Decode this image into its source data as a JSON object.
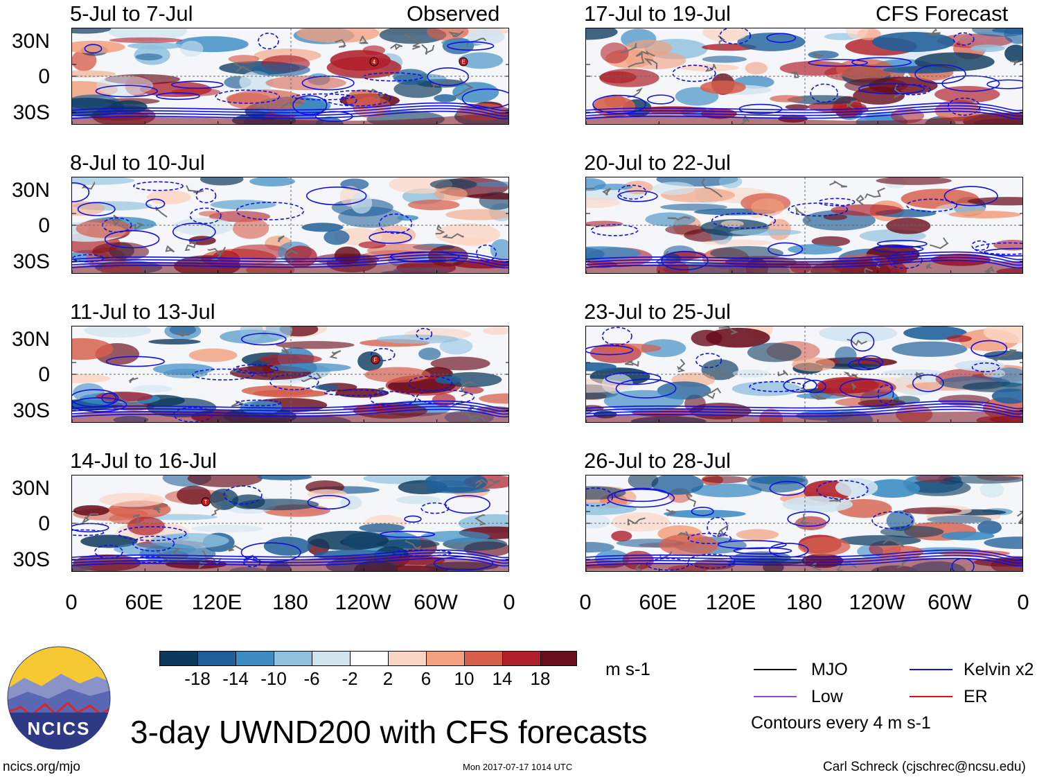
{
  "headers": {
    "left": "Observed",
    "right": "CFS Forecast"
  },
  "panels_observed": [
    {
      "title": "5-Jul to 7-Jul"
    },
    {
      "title": "8-Jul to 10-Jul"
    },
    {
      "title": "11-Jul to 13-Jul"
    },
    {
      "title": "14-Jul to 16-Jul"
    }
  ],
  "panels_forecast": [
    {
      "title": "17-Jul to 19-Jul"
    },
    {
      "title": "20-Jul to 22-Jul"
    },
    {
      "title": "23-Jul to 25-Jul"
    },
    {
      "title": "26-Jul to 28-Jul"
    }
  ],
  "lat_labels": [
    "30N",
    "0",
    "30S"
  ],
  "lon_labels": [
    "0",
    "60E",
    "120E",
    "180",
    "120W",
    "60W",
    "0"
  ],
  "colorbar": {
    "unit": "m s-1",
    "labels": [
      "-18",
      "-14",
      "-10",
      "-6",
      "-2",
      "2",
      "6",
      "10",
      "14",
      "18"
    ],
    "colors": [
      "#0c3a5e",
      "#1e5f99",
      "#3d8cc4",
      "#8fc1de",
      "#d0e4f0",
      "#ffffff",
      "#fbd5c4",
      "#f2a07f",
      "#d65f4c",
      "#b01f2a",
      "#6a0d1b"
    ]
  },
  "legend": {
    "mjo": "MJO",
    "kelvin": "Kelvin x2",
    "low": "Low",
    "er": "ER",
    "contours_note": "Contours every 4 m s-1",
    "colors": {
      "mjo": "#000000",
      "kelvin": "#1010e0",
      "low": "#a040d0",
      "er": "#e01010"
    }
  },
  "storm_markers": [
    {
      "panel": "observed-1",
      "letter": "E"
    },
    {
      "panel": "observed-1",
      "letter": "4"
    },
    {
      "panel": "observed-3",
      "letter": "F"
    },
    {
      "panel": "observed-4",
      "letter": "T"
    }
  ],
  "title": "3-day UWND200 with CFS forecasts",
  "logo_text": "NCICS",
  "footer": {
    "url": "ncics.org/mjo",
    "timestamp": "Mon 2017-07-17 1014 UTC",
    "credit": "Carl Schreck (cjschrec@ncsu.edu)"
  }
}
